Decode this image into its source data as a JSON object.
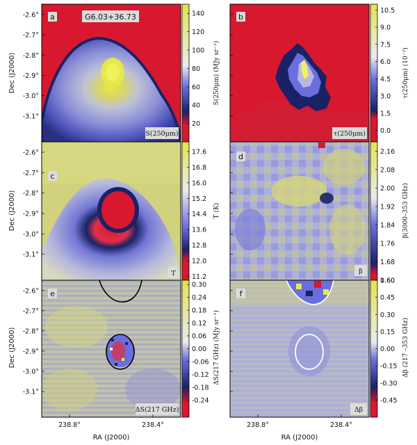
{
  "source_name": "G6.03+36.73",
  "axes": {
    "xlabel": "RA (J2000)",
    "ylabel": "Dec (J2000)",
    "x_ticks": [
      "238.8°",
      "238.4°"
    ],
    "y_ticks": [
      "-2.6°",
      "-2.7°",
      "-2.8°",
      "-2.9°",
      "-3.0°",
      "-3.1°"
    ]
  },
  "chart_data": [
    {
      "type": "heatmap",
      "panel": "a",
      "map_label": "S(250μm)",
      "colorbar": {
        "label": "S(250μm) (MJy sr⁻¹)",
        "ticks": [
          "140",
          "120",
          "100",
          "80",
          "60",
          "40",
          "20"
        ],
        "range": [
          0,
          150
        ]
      }
    },
    {
      "type": "heatmap",
      "panel": "b",
      "map_label": "τ(250μm)",
      "colorbar": {
        "label": "τ(250μm) (10⁻³)",
        "ticks": [
          "10.5",
          "9.0",
          "7.5",
          "6.0",
          "4.5",
          "3.0",
          "1.5",
          "0.0"
        ],
        "range": [
          -1,
          11
        ]
      }
    },
    {
      "type": "heatmap",
      "panel": "c",
      "map_label": "T",
      "colorbar": {
        "label": "T (K)",
        "ticks": [
          "17.6",
          "16.8",
          "16.0",
          "15.2",
          "14.4",
          "13.6",
          "12.8",
          "12.0",
          "11.2"
        ],
        "range": [
          11.0,
          18.1
        ]
      }
    },
    {
      "type": "heatmap",
      "panel": "d",
      "map_label": "β",
      "colorbar": {
        "label": "β(3000–353 GHz)",
        "ticks": [
          "2.16",
          "2.08",
          "2.00",
          "1.92",
          "1.84",
          "1.76",
          "1.68",
          "1.60"
        ],
        "range": [
          1.6,
          2.2
        ]
      }
    },
    {
      "type": "heatmap",
      "panel": "e",
      "map_label": "ΔS(217 GHz)",
      "colorbar": {
        "label": "ΔS(217 GHz) (MJy sr⁻¹)",
        "ticks": [
          "0.30",
          "0.24",
          "0.18",
          "0.12",
          "0.06",
          "0.00",
          "-0.06",
          "-0.12",
          "-0.18",
          "-0.24"
        ],
        "range": [
          -0.32,
          0.32
        ]
      }
    },
    {
      "type": "heatmap",
      "panel": "f",
      "map_label": "Δβ",
      "colorbar": {
        "label": "Δβ (217 –353 GHz)",
        "ticks": [
          "0.60",
          "0.45",
          "0.30",
          "0.15",
          "0.00",
          "-0.15",
          "-0.30",
          "-0.45"
        ],
        "range": [
          -0.6,
          0.6
        ]
      }
    }
  ],
  "colors": {
    "map_red": "#d8182e",
    "map_yellow": "#e3e34f",
    "map_white": "#ebebf0",
    "map_blue": "#6a6ede",
    "map_navy": "#1a2266",
    "contour_black": "#000000",
    "contour_white": "#ffffff"
  }
}
